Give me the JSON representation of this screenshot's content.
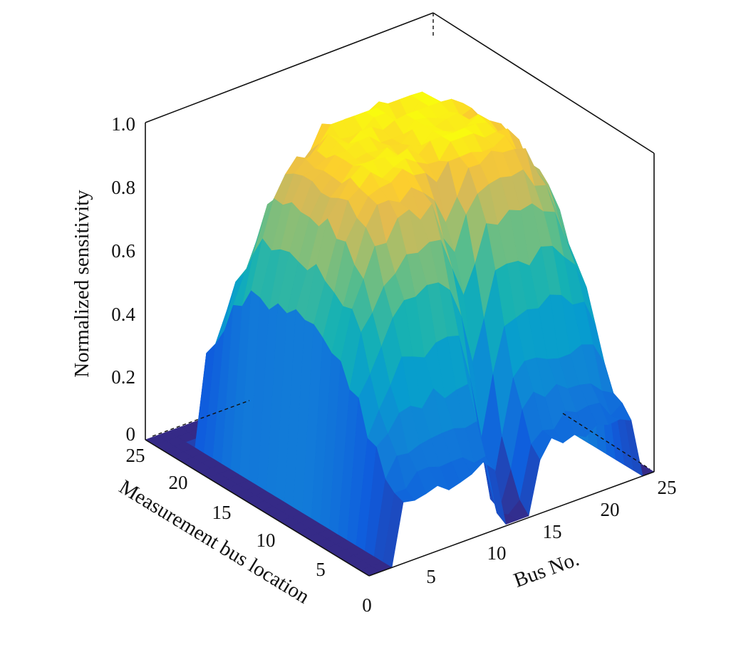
{
  "chart_data": {
    "type": "surface3d",
    "title": "",
    "xlabel": "Bus No.",
    "ylabel": "Measurement bus location",
    "zlabel": "Normalized sensitivity",
    "xlim": [
      0,
      25
    ],
    "ylim": [
      0,
      25
    ],
    "zlim": [
      0,
      1.0
    ],
    "x_ticks": [
      "5",
      "10",
      "15",
      "20",
      "25"
    ],
    "y_ticks": [
      "0",
      "5",
      "10",
      "15",
      "20",
      "25"
    ],
    "z_ticks": [
      "0",
      "0.2",
      "0.4",
      "0.6",
      "0.8",
      "1.0"
    ],
    "colormap": "parula",
    "grid": "off",
    "surface_description_values": {
      "bus_range_nonzero": [
        3,
        23
      ],
      "measurement_range_nonzero": [
        0,
        22
      ],
      "peak_value": 1.0,
      "plateau_value": 0.85,
      "center_dip_bus": 13
    }
  }
}
